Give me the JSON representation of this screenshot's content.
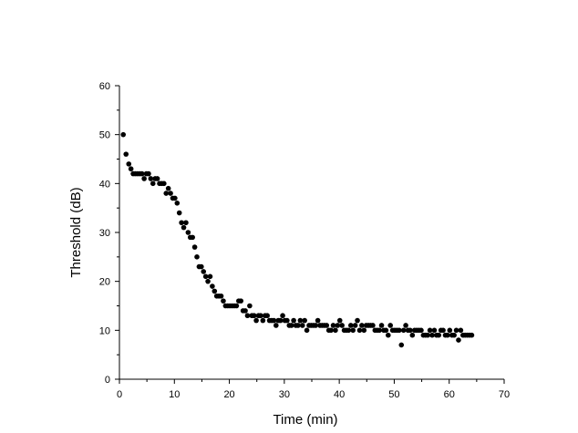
{
  "chart_data": {
    "type": "scatter",
    "title": "",
    "xlabel": "Time (min)",
    "ylabel": "Threshold (dB)",
    "xlim": [
      0,
      70
    ],
    "ylim": [
      0,
      60
    ],
    "xticks": [
      0,
      10,
      20,
      30,
      40,
      50,
      60,
      70
    ],
    "yticks": [
      0,
      10,
      20,
      30,
      40,
      50,
      60
    ],
    "xtick_labels": [
      "0",
      "10",
      "20",
      "30",
      "40",
      "50",
      "60",
      "70"
    ],
    "ytick_labels": [
      "0",
      "10",
      "20",
      "30",
      "40",
      "50",
      "60"
    ],
    "grid": false,
    "legend": null,
    "marker_color": "#000000",
    "series": [
      {
        "name": "Threshold",
        "points": [
          [
            0.7,
            50
          ],
          [
            1.2,
            46
          ],
          [
            1.7,
            44
          ],
          [
            2.1,
            43
          ],
          [
            2.5,
            42
          ],
          [
            2.9,
            42
          ],
          [
            3.3,
            42
          ],
          [
            3.7,
            42
          ],
          [
            4.1,
            42
          ],
          [
            4.5,
            41
          ],
          [
            4.9,
            42
          ],
          [
            5.3,
            42
          ],
          [
            5.7,
            41
          ],
          [
            6.1,
            40
          ],
          [
            6.5,
            41
          ],
          [
            6.9,
            41
          ],
          [
            7.3,
            40
          ],
          [
            7.7,
            40
          ],
          [
            8.1,
            40
          ],
          [
            8.5,
            38
          ],
          [
            8.9,
            39
          ],
          [
            9.3,
            38
          ],
          [
            9.7,
            37
          ],
          [
            10.1,
            37
          ],
          [
            10.5,
            36
          ],
          [
            10.9,
            34
          ],
          [
            11.3,
            32
          ],
          [
            11.7,
            31
          ],
          [
            12.1,
            32
          ],
          [
            12.5,
            30
          ],
          [
            12.9,
            29
          ],
          [
            13.3,
            29
          ],
          [
            13.7,
            27
          ],
          [
            14.1,
            25
          ],
          [
            14.5,
            23
          ],
          [
            14.9,
            23
          ],
          [
            15.3,
            22
          ],
          [
            15.7,
            21
          ],
          [
            16.1,
            20
          ],
          [
            16.5,
            21
          ],
          [
            16.9,
            19
          ],
          [
            17.3,
            18
          ],
          [
            17.7,
            17
          ],
          [
            18.1,
            17
          ],
          [
            18.5,
            17
          ],
          [
            18.9,
            16
          ],
          [
            19.3,
            15
          ],
          [
            19.7,
            15
          ],
          [
            20.1,
            15
          ],
          [
            20.5,
            15
          ],
          [
            20.9,
            15
          ],
          [
            21.3,
            15
          ],
          [
            21.7,
            16
          ],
          [
            22.1,
            16
          ],
          [
            22.5,
            14
          ],
          [
            22.9,
            14
          ],
          [
            23.3,
            13
          ],
          [
            23.7,
            15
          ],
          [
            24.1,
            13
          ],
          [
            24.5,
            13
          ],
          [
            24.9,
            12
          ],
          [
            25.3,
            13
          ],
          [
            25.7,
            13
          ],
          [
            26.1,
            12
          ],
          [
            26.5,
            13
          ],
          [
            26.9,
            13
          ],
          [
            27.3,
            12
          ],
          [
            27.7,
            12
          ],
          [
            28.1,
            12
          ],
          [
            28.5,
            11
          ],
          [
            28.9,
            12
          ],
          [
            29.3,
            12
          ],
          [
            29.7,
            13
          ],
          [
            30.1,
            12
          ],
          [
            30.5,
            12
          ],
          [
            30.9,
            11
          ],
          [
            31.3,
            11
          ],
          [
            31.7,
            12
          ],
          [
            32.1,
            11
          ],
          [
            32.5,
            11
          ],
          [
            32.9,
            12
          ],
          [
            33.3,
            11
          ],
          [
            33.7,
            12
          ],
          [
            34.1,
            10
          ],
          [
            34.5,
            11
          ],
          [
            34.9,
            11
          ],
          [
            35.3,
            11
          ],
          [
            35.7,
            11
          ],
          [
            36.1,
            12
          ],
          [
            36.5,
            11
          ],
          [
            36.9,
            11
          ],
          [
            37.3,
            11
          ],
          [
            37.7,
            11
          ],
          [
            38.1,
            10
          ],
          [
            38.5,
            10
          ],
          [
            38.9,
            11
          ],
          [
            39.3,
            10
          ],
          [
            39.7,
            11
          ],
          [
            40.1,
            12
          ],
          [
            40.5,
            11
          ],
          [
            40.9,
            10
          ],
          [
            41.3,
            10
          ],
          [
            41.7,
            10
          ],
          [
            42.1,
            11
          ],
          [
            42.5,
            10
          ],
          [
            42.9,
            11
          ],
          [
            43.3,
            12
          ],
          [
            43.7,
            10
          ],
          [
            44.1,
            11
          ],
          [
            44.5,
            10
          ],
          [
            44.9,
            11
          ],
          [
            45.3,
            11
          ],
          [
            45.7,
            11
          ],
          [
            46.1,
            11
          ],
          [
            46.5,
            10
          ],
          [
            46.9,
            10
          ],
          [
            47.3,
            10
          ],
          [
            47.7,
            11
          ],
          [
            48.1,
            10
          ],
          [
            48.5,
            10
          ],
          [
            48.9,
            9
          ],
          [
            49.3,
            11
          ],
          [
            49.7,
            10
          ],
          [
            50.1,
            10
          ],
          [
            50.5,
            10
          ],
          [
            50.9,
            10
          ],
          [
            51.3,
            7
          ],
          [
            51.7,
            10
          ],
          [
            52.1,
            11
          ],
          [
            52.5,
            10
          ],
          [
            52.9,
            10
          ],
          [
            53.3,
            9
          ],
          [
            53.7,
            10
          ],
          [
            54.1,
            10
          ],
          [
            54.5,
            10
          ],
          [
            54.9,
            10
          ],
          [
            55.3,
            9
          ],
          [
            55.7,
            9
          ],
          [
            56.1,
            9
          ],
          [
            56.5,
            10
          ],
          [
            56.9,
            9
          ],
          [
            57.3,
            10
          ],
          [
            57.7,
            9
          ],
          [
            58.1,
            9
          ],
          [
            58.5,
            10
          ],
          [
            58.9,
            10
          ],
          [
            59.3,
            9
          ],
          [
            59.7,
            9
          ],
          [
            60.1,
            10
          ],
          [
            60.5,
            9
          ],
          [
            60.9,
            9
          ],
          [
            61.3,
            10
          ],
          [
            61.7,
            8
          ],
          [
            62.1,
            10
          ],
          [
            62.5,
            9
          ],
          [
            62.9,
            9
          ],
          [
            63.3,
            9
          ],
          [
            63.7,
            9
          ],
          [
            64.1,
            9
          ]
        ]
      }
    ]
  }
}
